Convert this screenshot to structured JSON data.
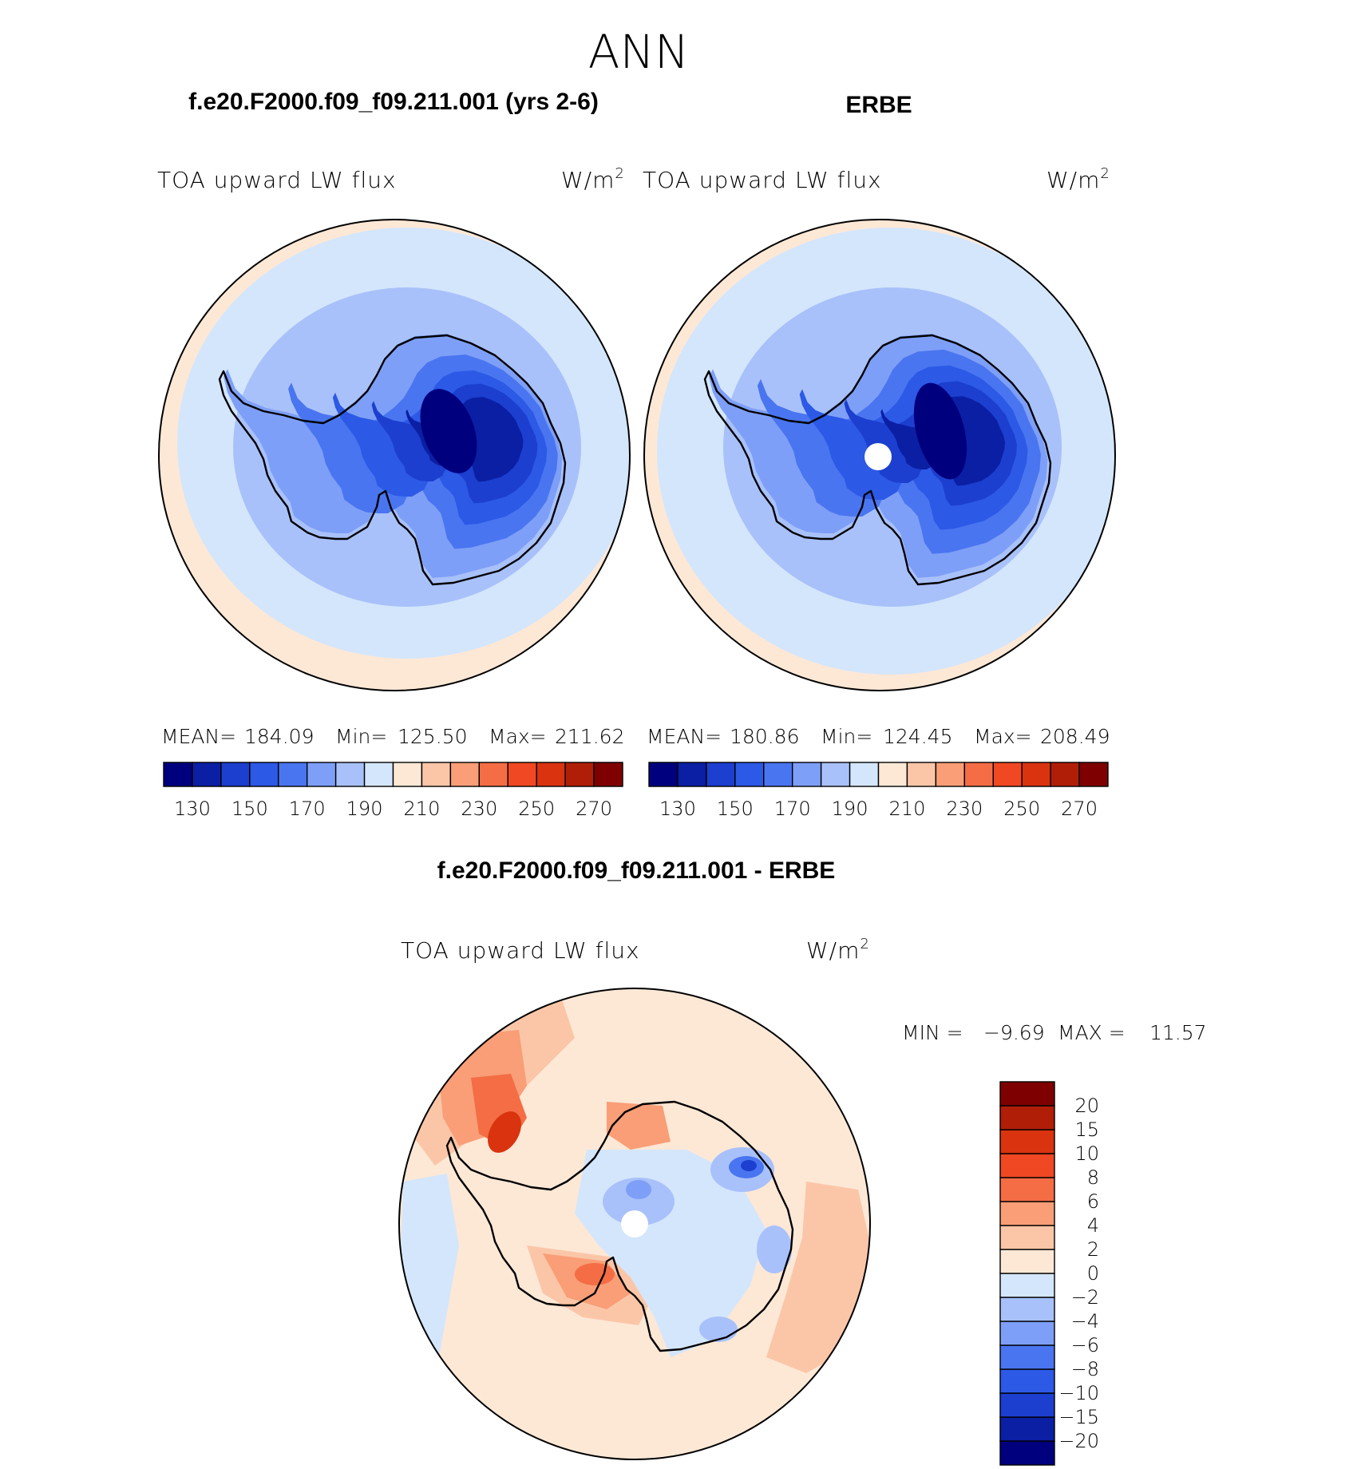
{
  "figure_title": "ANN",
  "panels": [
    {
      "case_title": "f.e20.F2000.f09_f09.211.001 (yrs 2-6)",
      "variable": "TOA upward LW flux",
      "units": "W/m",
      "units_sup": "2",
      "mean_label": "MEAN=",
      "mean_value": "184.09",
      "min_label": "Min=",
      "min_value": "125.50",
      "max_label": "Max=",
      "max_value": "211.62"
    },
    {
      "case_title": "ERBE",
      "variable": "TOA upward LW flux",
      "units": "W/m",
      "units_sup": "2",
      "mean_label": "MEAN=",
      "mean_value": "180.86",
      "min_label": "Min=",
      "min_value": "124.45",
      "max_label": "Max=",
      "max_value": "208.49"
    }
  ],
  "diff_panel": {
    "case_title": "f.e20.F2000.f09_f09.211.001 - ERBE",
    "variable": "TOA upward LW flux",
    "units": "W/m",
    "units_sup": "2",
    "min_label": "MIN =",
    "min_value": "−9.69",
    "max_label": "MAX =",
    "max_value": "11.57"
  },
  "abs_colorbar": {
    "colors": [
      "#00007f",
      "#0b1fa4",
      "#1c3fcf",
      "#2c59e6",
      "#4a75f0",
      "#7e9ff7",
      "#a9c1fa",
      "#d4e6fc",
      "#fde8d6",
      "#fbc6a8",
      "#f99e76",
      "#f46d45",
      "#ef4822",
      "#d9330f",
      "#b11e07",
      "#7f0000"
    ],
    "tick_labels": [
      "130",
      "150",
      "170",
      "190",
      "210",
      "230",
      "250",
      "270"
    ]
  },
  "diff_colorbar": {
    "colors": [
      "#00007f",
      "#0b1fa4",
      "#1c3fcf",
      "#2c59e6",
      "#4a75f0",
      "#7e9ff7",
      "#a9c1fa",
      "#d4e6fc",
      "#fde8d6",
      "#fbc6a8",
      "#f99e76",
      "#f46d45",
      "#ef4822",
      "#d9330f",
      "#b11e07",
      "#7f0000"
    ],
    "tick_labels": [
      "20",
      "15",
      "10",
      "8",
      "6",
      "4",
      "2",
      "0",
      "−2",
      "−4",
      "−6",
      "−8",
      "−10",
      "−15",
      "−20"
    ]
  }
}
